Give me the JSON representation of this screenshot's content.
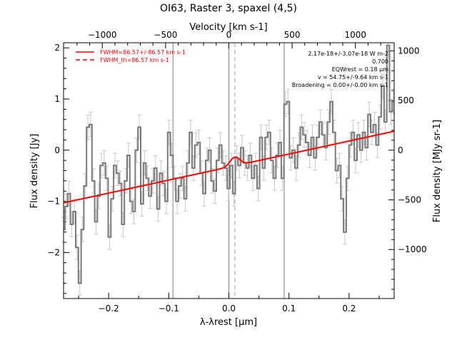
{
  "chart_data": {
    "type": "line",
    "title": "OI63, Raster 3, spaxel (4,5)",
    "xlabel": "λ-λrest [μm]",
    "ylabel": "Flux density [Jy]",
    "ylabel_right": "Flux density [MJy sr-1]",
    "xlabel_top": "Velocity [km s-1]",
    "xlim": [
      -0.275,
      0.275
    ],
    "ylim": [
      -2.9,
      2.1
    ],
    "x_ticks": [
      -0.2,
      -0.1,
      0.0,
      0.1,
      0.2
    ],
    "x_tick_labels": [
      "−0.2",
      "−0.1",
      "0.0",
      "0.1",
      "0.2"
    ],
    "y_ticks": [
      -2,
      -1,
      0,
      1,
      2
    ],
    "y_tick_labels": [
      "−2",
      "−1",
      "0",
      "1",
      "2"
    ],
    "top_ticks": [
      -1000,
      -500,
      0,
      500,
      1000
    ],
    "top_tick_labels": [
      "−1000",
      "−500",
      "0",
      "500",
      "1000"
    ],
    "right_ticks": [
      -1000,
      -500,
      0,
      500,
      1000
    ],
    "right_tick_labels": [
      "−1000",
      "−500",
      "0",
      "500",
      "1000"
    ],
    "velocity_per_micron": 4750,
    "mjy_per_jy": 515,
    "vertical_lines": [
      -0.093,
      0.0,
      0.092
    ],
    "dashed_line": 0.01,
    "legend": [
      {
        "label": "FWHM=86.57+/-86.57 km s-1",
        "style": "solid",
        "color": "#ff0000"
      },
      {
        "label": "FWHM_th=86.57 km s-1",
        "style": "dashed",
        "color": "#ff0000"
      }
    ],
    "annotations": [
      "2.17e-18+/-3.07e-18 W m-2",
      "0.700",
      "EQWrest = 0.18 μm",
      "v = 54.75+/-9.64 km s-1",
      "Broadening = 0.00+/-0.00 km s-1"
    ],
    "fit": {
      "x0": -0.275,
      "y0": -1.03,
      "x1": 0.275,
      "y1": 0.37,
      "gauss_center": 0.01,
      "gauss_amp": 0.17,
      "gauss_sigma": 0.008
    },
    "series": [
      {
        "values": [
          [
            -0.275,
            -1.55
          ],
          [
            -0.2705,
            -1.1
          ],
          [
            -0.266,
            -0.85
          ],
          [
            -0.2615,
            -1.45
          ],
          [
            -0.257,
            -1.2
          ],
          [
            -0.2525,
            -1.9
          ],
          [
            -0.248,
            -2.6
          ],
          [
            -0.2435,
            -1.55
          ],
          [
            -0.239,
            -0.7
          ],
          [
            -0.2345,
            0.45
          ],
          [
            -0.23,
            0.5
          ],
          [
            -0.2255,
            -0.6
          ],
          [
            -0.221,
            -1.4
          ],
          [
            -0.2165,
            -0.9
          ],
          [
            -0.212,
            -0.3
          ],
          [
            -0.2075,
            -0.25
          ],
          [
            -0.203,
            -0.55
          ],
          [
            -0.1985,
            -1.7
          ],
          [
            -0.194,
            -0.95
          ],
          [
            -0.1895,
            -0.3
          ],
          [
            -0.185,
            -0.45
          ],
          [
            -0.1805,
            -0.65
          ],
          [
            -0.176,
            -1.45
          ],
          [
            -0.1715,
            -0.6
          ],
          [
            -0.167,
            -0.1
          ],
          [
            -0.1625,
            -1.0
          ],
          [
            -0.158,
            -1.2
          ],
          [
            -0.1535,
            0.0
          ],
          [
            -0.149,
            0.45
          ],
          [
            -0.1445,
            -1.05
          ],
          [
            -0.14,
            -0.25
          ],
          [
            -0.1355,
            -0.55
          ],
          [
            -0.131,
            -0.9
          ],
          [
            -0.1265,
            -0.6
          ],
          [
            -0.122,
            -0.35
          ],
          [
            -0.1175,
            -1.15
          ],
          [
            -0.113,
            -0.45
          ],
          [
            -0.1085,
            -0.65
          ],
          [
            -0.104,
            -1.0
          ],
          [
            -0.0995,
            0.35
          ],
          [
            -0.095,
            -0.1
          ],
          [
            -0.0905,
            -0.55
          ],
          [
            -0.086,
            -1.0
          ],
          [
            -0.0815,
            -0.7
          ],
          [
            -0.077,
            -0.55
          ],
          [
            -0.0725,
            -0.95
          ],
          [
            -0.068,
            -0.25
          ],
          [
            -0.0635,
            0.35
          ],
          [
            -0.059,
            -0.35
          ],
          [
            -0.0545,
            0.1
          ],
          [
            -0.05,
            0.15
          ],
          [
            -0.0455,
            -0.45
          ],
          [
            -0.041,
            -0.85
          ],
          [
            -0.0365,
            -0.2
          ],
          [
            -0.032,
            0.0
          ],
          [
            -0.0275,
            -0.6
          ],
          [
            -0.023,
            -0.8
          ],
          [
            -0.0185,
            -0.2
          ],
          [
            -0.014,
            0.1
          ],
          [
            -0.0095,
            -0.25
          ],
          [
            -0.005,
            -0.35
          ],
          [
            -0.0005,
            -0.75
          ],
          [
            0.004,
            -0.3
          ],
          [
            0.0085,
            -0.85
          ],
          [
            0.013,
            -0.15
          ],
          [
            0.0175,
            -0.3
          ],
          [
            0.022,
            0.05
          ],
          [
            0.0265,
            -0.25
          ],
          [
            0.031,
            -0.35
          ],
          [
            0.0355,
            -0.1
          ],
          [
            0.04,
            -0.55
          ],
          [
            0.0445,
            -0.3
          ],
          [
            0.049,
            -0.75
          ],
          [
            0.0535,
            0.25
          ],
          [
            0.058,
            -0.35
          ],
          [
            0.0625,
            0.25
          ],
          [
            0.067,
            0.35
          ],
          [
            0.0715,
            -0.2
          ],
          [
            0.076,
            -0.55
          ],
          [
            0.0805,
            -0.1
          ],
          [
            0.085,
            0.15
          ],
          [
            0.0895,
            -0.55
          ],
          [
            0.094,
            0.9
          ],
          [
            0.0985,
            0.95
          ],
          [
            0.103,
            -0.15
          ],
          [
            0.1075,
            0.0
          ],
          [
            0.112,
            -0.35
          ],
          [
            0.1165,
            0.1
          ],
          [
            0.121,
            0.45
          ],
          [
            0.1255,
            0.3
          ],
          [
            0.13,
            0.15
          ],
          [
            0.1345,
            -0.1
          ],
          [
            0.139,
            0.25
          ],
          [
            0.1435,
            -0.15
          ],
          [
            0.148,
            0.25
          ],
          [
            0.1525,
            0.55
          ],
          [
            0.157,
            0.3
          ],
          [
            0.1615,
            0.05
          ],
          [
            0.166,
            0.55
          ],
          [
            0.1705,
            0.95
          ],
          [
            0.175,
            0.35
          ],
          [
            0.1795,
            -0.4
          ],
          [
            0.184,
            -0.3
          ],
          [
            0.1885,
            -0.95
          ],
          [
            0.193,
            -1.6
          ],
          [
            0.1975,
            -0.55
          ],
          [
            0.202,
            0.1
          ],
          [
            0.2065,
            0.35
          ],
          [
            0.211,
            -0.2
          ],
          [
            0.2155,
            0.3
          ],
          [
            0.22,
            0.0
          ],
          [
            0.2245,
            0.35
          ],
          [
            0.229,
            0.05
          ],
          [
            0.2335,
            0.7
          ],
          [
            0.238,
            0.35
          ],
          [
            0.2425,
            0.5
          ],
          [
            0.247,
            0.1
          ],
          [
            0.2515,
            0.65
          ],
          [
            0.256,
            1.25
          ],
          [
            0.2605,
            0.55
          ],
          [
            0.265,
            2.05
          ],
          [
            0.2695,
            0.75
          ],
          [
            0.274,
            0.95
          ]
        ]
      }
    ]
  }
}
